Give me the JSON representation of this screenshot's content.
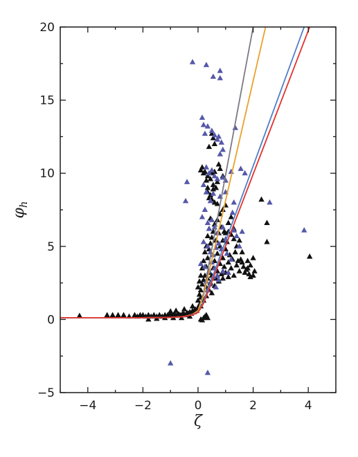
{
  "chart_data": {
    "type": "scatter",
    "xlabel": "ζ",
    "ylabel_main": "φ",
    "ylabel_sub": "h",
    "xlim": [
      -5,
      5
    ],
    "ylim": [
      -5,
      20
    ],
    "xticks": [
      -4,
      -2,
      0,
      2,
      4
    ],
    "xtick_labels": [
      "−4",
      "−2",
      "0",
      "2",
      "4"
    ],
    "yticks": [
      -5,
      0,
      5,
      10,
      15,
      20
    ],
    "ytick_labels": [
      "−5",
      "0",
      "5",
      "10",
      "15",
      "20"
    ],
    "grid": false,
    "marker": "triangle-up",
    "colors": {
      "black_points": "#111111",
      "blue_points": "#5558a8",
      "curve_gray": "#7a7a84",
      "curve_orange": "#e8a12c",
      "curve_blue": "#4f7ec8",
      "curve_red": "#e3322b"
    },
    "series": [
      {
        "kind": "points",
        "color_key": "black_points",
        "points": [
          [
            -4.3,
            0.25
          ],
          [
            -3.3,
            0.3
          ],
          [
            -3.1,
            0.3
          ],
          [
            -2.9,
            0.3
          ],
          [
            -2.7,
            0.3
          ],
          [
            -2.5,
            0.2
          ],
          [
            -2.3,
            0.3
          ],
          [
            -2.2,
            0.2
          ],
          [
            -2.1,
            0.3
          ],
          [
            -2.0,
            0.3
          ],
          [
            -1.9,
            0.2
          ],
          [
            -1.8,
            0.3
          ],
          [
            -1.7,
            0.2
          ],
          [
            -1.6,
            0.3
          ],
          [
            -1.5,
            0.2
          ],
          [
            -1.4,
            0.3
          ],
          [
            -1.3,
            0.2
          ],
          [
            -1.2,
            0.3
          ],
          [
            -1.1,
            0.3
          ],
          [
            -1.0,
            0.4
          ],
          [
            -0.95,
            0.25
          ],
          [
            -0.9,
            0.3
          ],
          [
            -0.85,
            0.35
          ],
          [
            -0.8,
            0.25
          ],
          [
            -0.75,
            0.3
          ],
          [
            -0.7,
            0.35
          ],
          [
            -0.65,
            0.3
          ],
          [
            -0.6,
            0.3
          ],
          [
            -0.55,
            0.4
          ],
          [
            -0.5,
            0.35
          ],
          [
            -0.45,
            0.3
          ],
          [
            -0.4,
            0.45
          ],
          [
            -0.35,
            0.4
          ],
          [
            -0.3,
            0.5
          ],
          [
            -0.25,
            0.4
          ],
          [
            -0.2,
            0.6
          ],
          [
            -0.15,
            0.5
          ],
          [
            -0.1,
            0.7
          ],
          [
            -0.05,
            0.6
          ],
          [
            0.0,
            0.8
          ],
          [
            0.05,
            1.0
          ],
          [
            0.1,
            0.9
          ],
          [
            -1.2,
            0.1
          ],
          [
            -1.5,
            0.05
          ],
          [
            -1.8,
            0.0
          ],
          [
            -0.9,
            0.1
          ],
          [
            -0.6,
            0.1
          ],
          [
            -0.3,
            0.2
          ],
          [
            0.1,
            0.0
          ],
          [
            0.15,
            -0.05
          ],
          [
            0.2,
            0.1
          ],
          [
            0.25,
            0.2
          ],
          [
            0.3,
            0.3
          ],
          [
            0.35,
            0.1
          ],
          [
            -0.8,
            0.6
          ],
          [
            -1.0,
            0.55
          ],
          [
            -0.5,
            0.7
          ],
          [
            -0.2,
            0.9
          ],
          [
            0.0,
            1.3
          ],
          [
            0.05,
            1.7
          ],
          [
            0.1,
            2.0
          ],
          [
            0.15,
            2.4
          ],
          [
            0.2,
            2.7
          ],
          [
            0.25,
            3.0
          ],
          [
            0.1,
            1.5
          ],
          [
            0.2,
            1.3
          ],
          [
            0.3,
            1.6
          ],
          [
            0.3,
            2.2
          ],
          [
            0.35,
            2.8
          ],
          [
            0.4,
            3.2
          ],
          [
            0.4,
            2.0
          ],
          [
            0.45,
            2.5
          ],
          [
            0.5,
            3.0
          ],
          [
            0.5,
            1.8
          ],
          [
            0.55,
            3.5
          ],
          [
            0.6,
            2.3
          ],
          [
            0.6,
            4.0
          ],
          [
            0.65,
            2.8
          ],
          [
            0.7,
            3.3
          ],
          [
            0.7,
            4.5
          ],
          [
            0.75,
            2.6
          ],
          [
            0.8,
            3.8
          ],
          [
            0.8,
            5.0
          ],
          [
            0.85,
            3.1
          ],
          [
            0.9,
            4.2
          ],
          [
            0.9,
            2.8
          ],
          [
            0.95,
            3.6
          ],
          [
            1.0,
            4.8
          ],
          [
            1.0,
            3.2
          ],
          [
            1.05,
            5.3
          ],
          [
            1.1,
            3.9
          ],
          [
            1.1,
            2.9
          ],
          [
            1.15,
            4.4
          ],
          [
            1.2,
            5.8
          ],
          [
            1.2,
            3.5
          ],
          [
            1.25,
            4.1
          ],
          [
            1.3,
            3.0
          ],
          [
            1.3,
            6.2
          ],
          [
            1.35,
            4.6
          ],
          [
            1.4,
            3.7
          ],
          [
            1.45,
            4.0
          ],
          [
            1.5,
            3.3
          ],
          [
            1.55,
            4.1
          ],
          [
            1.6,
            3.9
          ],
          [
            1.65,
            3.6
          ],
          [
            1.7,
            3.2
          ],
          [
            1.75,
            3.4
          ],
          [
            1.8,
            3.5
          ],
          [
            1.85,
            3.1
          ],
          [
            1.9,
            2.9
          ],
          [
            2.0,
            3.0
          ],
          [
            2.05,
            3.3
          ],
          [
            0.3,
            3.6
          ],
          [
            0.35,
            4.2
          ],
          [
            0.4,
            4.8
          ],
          [
            0.45,
            5.2
          ],
          [
            0.5,
            5.6
          ],
          [
            0.55,
            6.0
          ],
          [
            0.6,
            6.5
          ],
          [
            0.65,
            5.4
          ],
          [
            0.7,
            6.8
          ],
          [
            0.75,
            5.9
          ],
          [
            0.8,
            7.2
          ],
          [
            0.85,
            6.3
          ],
          [
            0.9,
            7.5
          ],
          [
            0.95,
            6.0
          ],
          [
            1.0,
            7.8
          ],
          [
            1.1,
            6.6
          ],
          [
            1.2,
            7.0
          ],
          [
            1.3,
            6.1
          ],
          [
            0.2,
            4.0
          ],
          [
            0.25,
            4.6
          ],
          [
            0.15,
            3.5
          ],
          [
            0.1,
            3.0
          ],
          [
            0.05,
            2.6
          ],
          [
            0.0,
            2.2
          ],
          [
            0.3,
            5.0
          ],
          [
            0.35,
            5.7
          ],
          [
            0.4,
            6.2
          ],
          [
            0.45,
            6.9
          ],
          [
            0.3,
            9.5
          ],
          [
            0.2,
            10.0
          ],
          [
            0.1,
            10.2
          ],
          [
            0.15,
            10.4
          ],
          [
            0.25,
            10.1
          ],
          [
            0.35,
            9.8
          ],
          [
            0.5,
            10.0
          ],
          [
            0.45,
            9.6
          ],
          [
            0.55,
            9.2
          ],
          [
            0.6,
            10.1
          ],
          [
            0.7,
            9.4
          ],
          [
            0.8,
            10.3
          ],
          [
            0.9,
            9.8
          ],
          [
            0.75,
            10.6
          ],
          [
            0.35,
            8.7
          ],
          [
            0.45,
            8.5
          ],
          [
            0.55,
            8.9
          ],
          [
            0.65,
            9.0
          ],
          [
            0.5,
            8.2
          ],
          [
            0.6,
            8.0
          ],
          [
            0.7,
            7.9
          ],
          [
            0.5,
            12.7
          ],
          [
            0.55,
            12.4
          ],
          [
            0.4,
            11.8
          ],
          [
            0.6,
            12.0
          ],
          [
            0.35,
            9.0
          ],
          [
            0.4,
            8.3
          ],
          [
            2.3,
            8.2
          ],
          [
            2.5,
            6.6
          ],
          [
            2.5,
            5.3
          ],
          [
            4.05,
            4.3
          ],
          [
            1.8,
            4.0
          ],
          [
            1.9,
            3.7
          ],
          [
            2.0,
            4.2
          ],
          [
            1.4,
            5.0
          ],
          [
            1.5,
            5.4
          ],
          [
            1.6,
            4.6
          ],
          [
            1.3,
            5.5
          ],
          [
            1.1,
            6.0
          ],
          [
            1.0,
            5.9
          ],
          [
            0.9,
            5.4
          ]
        ]
      },
      {
        "kind": "points",
        "color_key": "blue_points",
        "points": [
          [
            -0.2,
            17.6
          ],
          [
            0.3,
            17.4
          ],
          [
            0.55,
            16.6
          ],
          [
            0.8,
            17.0
          ],
          [
            0.8,
            16.5
          ],
          [
            0.15,
            13.8
          ],
          [
            0.2,
            13.3
          ],
          [
            0.25,
            12.7
          ],
          [
            0.35,
            13.2
          ],
          [
            0.5,
            12.9
          ],
          [
            0.6,
            12.6
          ],
          [
            0.7,
            12.3
          ],
          [
            0.75,
            12.5
          ],
          [
            0.85,
            12.1
          ],
          [
            1.35,
            13.1
          ],
          [
            0.9,
            11.6
          ],
          [
            0.8,
            11.3
          ],
          [
            0.3,
            10.4
          ],
          [
            0.4,
            10.0
          ],
          [
            0.5,
            10.2
          ],
          [
            0.6,
            9.8
          ],
          [
            0.7,
            9.6
          ],
          [
            0.9,
            9.7
          ],
          [
            1.2,
            10.1
          ],
          [
            1.55,
            10.3
          ],
          [
            1.7,
            10.0
          ],
          [
            1.0,
            9.5
          ],
          [
            -0.4,
            9.4
          ],
          [
            0.2,
            9.2
          ],
          [
            0.3,
            8.7
          ],
          [
            0.45,
            8.1
          ],
          [
            0.55,
            8.6
          ],
          [
            0.8,
            8.4
          ],
          [
            1.0,
            8.7
          ],
          [
            1.3,
            8.0
          ],
          [
            -0.45,
            8.1
          ],
          [
            0.15,
            7.0
          ],
          [
            0.25,
            7.5
          ],
          [
            0.35,
            6.6
          ],
          [
            0.4,
            6.2
          ],
          [
            0.5,
            6.8
          ],
          [
            0.6,
            6.3
          ],
          [
            0.7,
            5.9
          ],
          [
            0.9,
            6.3
          ],
          [
            1.0,
            5.5
          ],
          [
            1.3,
            6.1
          ],
          [
            1.4,
            5.7
          ],
          [
            0.2,
            5.3
          ],
          [
            0.35,
            5.0
          ],
          [
            0.45,
            4.6
          ],
          [
            0.55,
            4.4
          ],
          [
            0.65,
            4.9
          ],
          [
            0.75,
            5.2
          ],
          [
            0.85,
            4.8
          ],
          [
            1.05,
            4.5
          ],
          [
            1.2,
            4.1
          ],
          [
            0.1,
            3.8
          ],
          [
            0.25,
            3.6
          ],
          [
            0.4,
            3.3
          ],
          [
            0.5,
            3.9
          ],
          [
            0.6,
            3.5
          ],
          [
            0.7,
            3.0
          ],
          [
            0.9,
            3.3
          ],
          [
            1.1,
            3.2
          ],
          [
            0.3,
            2.6
          ],
          [
            0.45,
            2.4
          ],
          [
            0.55,
            2.9
          ],
          [
            0.65,
            2.2
          ],
          [
            0.75,
            2.7
          ],
          [
            0.35,
            2.0
          ],
          [
            2.6,
            8.0
          ],
          [
            3.85,
            6.1
          ],
          [
            1.5,
            5.0
          ],
          [
            1.6,
            6.0
          ],
          [
            1.25,
            7.3
          ],
          [
            -1.0,
            -3.0
          ],
          [
            0.35,
            -3.65
          ]
        ]
      },
      {
        "kind": "curve",
        "color_key": "curve_gray",
        "points": [
          [
            -5,
            0.12
          ],
          [
            -2,
            0.12
          ],
          [
            -1,
            0.14
          ],
          [
            -0.5,
            0.2
          ],
          [
            -0.2,
            0.35
          ],
          [
            0.0,
            0.6
          ],
          [
            0.1,
            1.2
          ],
          [
            0.2,
            1.8
          ],
          [
            2.0,
            20.0
          ]
        ]
      },
      {
        "kind": "curve",
        "color_key": "curve_orange",
        "points": [
          [
            -5,
            0.12
          ],
          [
            -2,
            0.12
          ],
          [
            -1,
            0.14
          ],
          [
            -0.5,
            0.2
          ],
          [
            -0.2,
            0.35
          ],
          [
            0.0,
            0.6
          ],
          [
            0.1,
            1.1
          ],
          [
            0.2,
            1.6
          ],
          [
            2.45,
            20.0
          ]
        ]
      },
      {
        "kind": "curve",
        "color_key": "curve_blue",
        "points": [
          [
            -5,
            0.12
          ],
          [
            -2,
            0.12
          ],
          [
            -1,
            0.14
          ],
          [
            -0.5,
            0.2
          ],
          [
            -0.2,
            0.33
          ],
          [
            0.0,
            0.5
          ],
          [
            0.1,
            0.85
          ],
          [
            0.2,
            1.25
          ],
          [
            3.85,
            20.0
          ]
        ]
      },
      {
        "kind": "curve",
        "color_key": "curve_red",
        "points": [
          [
            -5,
            0.12
          ],
          [
            -2,
            0.12
          ],
          [
            -1,
            0.14
          ],
          [
            -0.5,
            0.2
          ],
          [
            -0.2,
            0.32
          ],
          [
            0.0,
            0.48
          ],
          [
            0.1,
            0.8
          ],
          [
            0.2,
            1.1
          ],
          [
            4.05,
            20.0
          ]
        ]
      }
    ]
  }
}
